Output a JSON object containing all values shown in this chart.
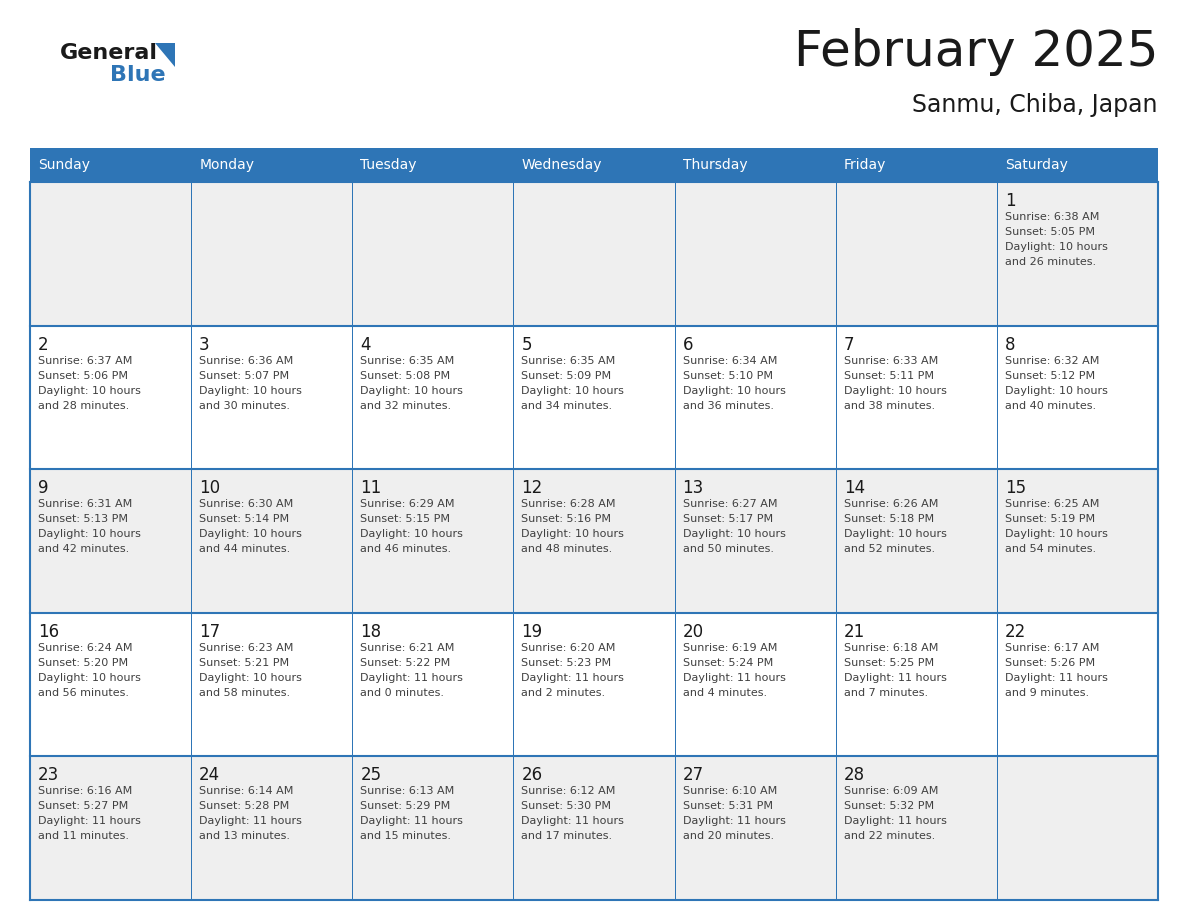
{
  "title": "February 2025",
  "subtitle": "Sanmu, Chiba, Japan",
  "header_bg": "#2e75b6",
  "header_text_color": "#ffffff",
  "day_names": [
    "Sunday",
    "Monday",
    "Tuesday",
    "Wednesday",
    "Thursday",
    "Friday",
    "Saturday"
  ],
  "bg_color": "#ffffff",
  "cell_bg_light": "#efefef",
  "cell_bg_white": "#ffffff",
  "grid_color": "#2e75b6",
  "day_num_color": "#1a1a1a",
  "text_color": "#404040",
  "logo_general_color": "#1a1a1a",
  "logo_blue_color": "#2e75b6",
  "weeks": [
    [
      {
        "day": null,
        "info": ""
      },
      {
        "day": null,
        "info": ""
      },
      {
        "day": null,
        "info": ""
      },
      {
        "day": null,
        "info": ""
      },
      {
        "day": null,
        "info": ""
      },
      {
        "day": null,
        "info": ""
      },
      {
        "day": 1,
        "info": "Sunrise: 6:38 AM\nSunset: 5:05 PM\nDaylight: 10 hours\nand 26 minutes."
      }
    ],
    [
      {
        "day": 2,
        "info": "Sunrise: 6:37 AM\nSunset: 5:06 PM\nDaylight: 10 hours\nand 28 minutes."
      },
      {
        "day": 3,
        "info": "Sunrise: 6:36 AM\nSunset: 5:07 PM\nDaylight: 10 hours\nand 30 minutes."
      },
      {
        "day": 4,
        "info": "Sunrise: 6:35 AM\nSunset: 5:08 PM\nDaylight: 10 hours\nand 32 minutes."
      },
      {
        "day": 5,
        "info": "Sunrise: 6:35 AM\nSunset: 5:09 PM\nDaylight: 10 hours\nand 34 minutes."
      },
      {
        "day": 6,
        "info": "Sunrise: 6:34 AM\nSunset: 5:10 PM\nDaylight: 10 hours\nand 36 minutes."
      },
      {
        "day": 7,
        "info": "Sunrise: 6:33 AM\nSunset: 5:11 PM\nDaylight: 10 hours\nand 38 minutes."
      },
      {
        "day": 8,
        "info": "Sunrise: 6:32 AM\nSunset: 5:12 PM\nDaylight: 10 hours\nand 40 minutes."
      }
    ],
    [
      {
        "day": 9,
        "info": "Sunrise: 6:31 AM\nSunset: 5:13 PM\nDaylight: 10 hours\nand 42 minutes."
      },
      {
        "day": 10,
        "info": "Sunrise: 6:30 AM\nSunset: 5:14 PM\nDaylight: 10 hours\nand 44 minutes."
      },
      {
        "day": 11,
        "info": "Sunrise: 6:29 AM\nSunset: 5:15 PM\nDaylight: 10 hours\nand 46 minutes."
      },
      {
        "day": 12,
        "info": "Sunrise: 6:28 AM\nSunset: 5:16 PM\nDaylight: 10 hours\nand 48 minutes."
      },
      {
        "day": 13,
        "info": "Sunrise: 6:27 AM\nSunset: 5:17 PM\nDaylight: 10 hours\nand 50 minutes."
      },
      {
        "day": 14,
        "info": "Sunrise: 6:26 AM\nSunset: 5:18 PM\nDaylight: 10 hours\nand 52 minutes."
      },
      {
        "day": 15,
        "info": "Sunrise: 6:25 AM\nSunset: 5:19 PM\nDaylight: 10 hours\nand 54 minutes."
      }
    ],
    [
      {
        "day": 16,
        "info": "Sunrise: 6:24 AM\nSunset: 5:20 PM\nDaylight: 10 hours\nand 56 minutes."
      },
      {
        "day": 17,
        "info": "Sunrise: 6:23 AM\nSunset: 5:21 PM\nDaylight: 10 hours\nand 58 minutes."
      },
      {
        "day": 18,
        "info": "Sunrise: 6:21 AM\nSunset: 5:22 PM\nDaylight: 11 hours\nand 0 minutes."
      },
      {
        "day": 19,
        "info": "Sunrise: 6:20 AM\nSunset: 5:23 PM\nDaylight: 11 hours\nand 2 minutes."
      },
      {
        "day": 20,
        "info": "Sunrise: 6:19 AM\nSunset: 5:24 PM\nDaylight: 11 hours\nand 4 minutes."
      },
      {
        "day": 21,
        "info": "Sunrise: 6:18 AM\nSunset: 5:25 PM\nDaylight: 11 hours\nand 7 minutes."
      },
      {
        "day": 22,
        "info": "Sunrise: 6:17 AM\nSunset: 5:26 PM\nDaylight: 11 hours\nand 9 minutes."
      }
    ],
    [
      {
        "day": 23,
        "info": "Sunrise: 6:16 AM\nSunset: 5:27 PM\nDaylight: 11 hours\nand 11 minutes."
      },
      {
        "day": 24,
        "info": "Sunrise: 6:14 AM\nSunset: 5:28 PM\nDaylight: 11 hours\nand 13 minutes."
      },
      {
        "day": 25,
        "info": "Sunrise: 6:13 AM\nSunset: 5:29 PM\nDaylight: 11 hours\nand 15 minutes."
      },
      {
        "day": 26,
        "info": "Sunrise: 6:12 AM\nSunset: 5:30 PM\nDaylight: 11 hours\nand 17 minutes."
      },
      {
        "day": 27,
        "info": "Sunrise: 6:10 AM\nSunset: 5:31 PM\nDaylight: 11 hours\nand 20 minutes."
      },
      {
        "day": 28,
        "info": "Sunrise: 6:09 AM\nSunset: 5:32 PM\nDaylight: 11 hours\nand 22 minutes."
      },
      {
        "day": null,
        "info": ""
      }
    ]
  ],
  "fig_width": 11.88,
  "fig_height": 9.18,
  "dpi": 100
}
